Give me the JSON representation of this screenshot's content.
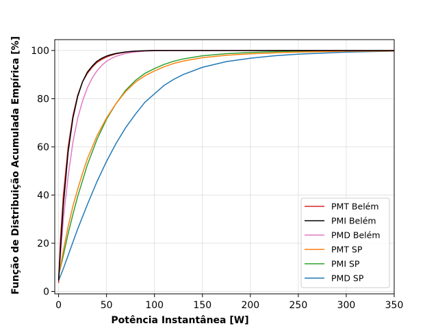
{
  "chart_data": {
    "type": "line",
    "title": "",
    "xlabel": "Potência Instantânea [W]",
    "ylabel": "Função de Distribuição Acumulada Empírica [%]",
    "xlim": [
      -4,
      350
    ],
    "ylim": [
      -1,
      104.5
    ],
    "xticks": [
      0,
      50,
      100,
      150,
      200,
      250,
      300,
      350
    ],
    "yticks": [
      0,
      20,
      40,
      60,
      80,
      100
    ],
    "grid": true,
    "legend_position": "lower-right",
    "series": [
      {
        "name": "PMT Belém",
        "color": "#d62728",
        "x": [
          0,
          2,
          5,
          10,
          15,
          20,
          25,
          30,
          35,
          40,
          45,
          50,
          55,
          60,
          70,
          80,
          90,
          100,
          120,
          150,
          200,
          250,
          300,
          350
        ],
        "y": [
          3.5,
          22,
          40,
          60,
          73,
          81.5,
          87,
          90.5,
          93,
          95,
          96.3,
          97.3,
          98,
          98.6,
          99.3,
          99.7,
          99.9,
          100,
          100,
          100,
          100,
          100,
          100,
          100
        ]
      },
      {
        "name": "PMI Belém",
        "color": "#000000",
        "x": [
          0,
          2,
          5,
          10,
          15,
          20,
          25,
          30,
          35,
          40,
          45,
          50,
          55,
          60,
          70,
          80,
          90,
          100,
          120,
          150,
          200,
          250,
          300,
          350
        ],
        "y": [
          4.5,
          18,
          36,
          58,
          72,
          81,
          87,
          91,
          93.5,
          95.5,
          96.8,
          97.7,
          98.3,
          98.8,
          99.4,
          99.7,
          99.9,
          100,
          100,
          100,
          100,
          100,
          100,
          100
        ]
      },
      {
        "name": "PMD Belém",
        "color": "#e377c2",
        "x": [
          0,
          2,
          5,
          10,
          15,
          20,
          25,
          30,
          35,
          40,
          45,
          50,
          55,
          60,
          70,
          80,
          90,
          100,
          120,
          150,
          200,
          250,
          300,
          350
        ],
        "y": [
          5,
          15,
          30,
          48,
          62,
          72,
          79,
          84.5,
          88.5,
          91.5,
          93.8,
          95.5,
          96.7,
          97.6,
          98.8,
          99.4,
          99.7,
          99.9,
          100,
          100,
          100,
          100,
          100,
          100
        ]
      },
      {
        "name": "PMT SP",
        "color": "#ff7f0e",
        "x": [
          0,
          5,
          10,
          15,
          20,
          25,
          30,
          40,
          50,
          60,
          70,
          80,
          90,
          100,
          110,
          120,
          130,
          150,
          175,
          200,
          225,
          250,
          300,
          350
        ],
        "y": [
          6,
          17,
          27,
          35.5,
          42.5,
          49,
          55,
          64.5,
          72,
          78,
          83,
          86.8,
          89.5,
          91.5,
          93.2,
          94.6,
          95.6,
          97,
          98,
          98.6,
          99,
          99.3,
          99.7,
          99.8
        ]
      },
      {
        "name": "PMI SP",
        "color": "#2ca02c",
        "x": [
          0,
          5,
          10,
          15,
          20,
          25,
          30,
          40,
          50,
          60,
          70,
          80,
          90,
          100,
          110,
          120,
          130,
          150,
          175,
          200,
          225,
          250,
          300,
          350
        ],
        "y": [
          6.5,
          15,
          24,
          32,
          39.5,
          46,
          52.5,
          63,
          71.5,
          78,
          83.5,
          87.5,
          90.5,
          92.5,
          94.2,
          95.5,
          96.5,
          97.8,
          98.7,
          99.2,
          99.5,
          99.7,
          99.85,
          99.9
        ]
      },
      {
        "name": "PMD SP",
        "color": "#1f77b4",
        "x": [
          0,
          5,
          10,
          15,
          20,
          25,
          30,
          40,
          50,
          60,
          70,
          80,
          90,
          100,
          110,
          120,
          130,
          150,
          175,
          200,
          225,
          250,
          300,
          350
        ],
        "y": [
          4.5,
          9.5,
          15,
          20.5,
          26,
          31,
          36,
          45.5,
          54,
          61.5,
          68,
          73.5,
          78.5,
          82,
          85.5,
          88,
          90,
          93,
          95.4,
          96.8,
          97.8,
          98.5,
          99.3,
          99.7
        ]
      }
    ]
  }
}
